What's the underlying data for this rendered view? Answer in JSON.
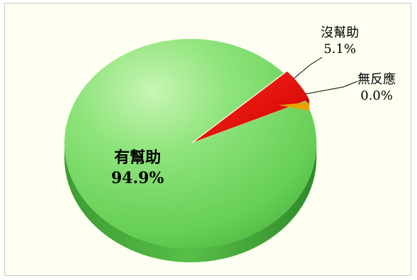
{
  "chart_data": {
    "type": "pie",
    "title": "",
    "slices": [
      {
        "label": "有幫助",
        "value": 94.9,
        "display": "94.9%",
        "color": "#7ddc6c"
      },
      {
        "label": "沒幫助",
        "value": 5.1,
        "display": "5.1%",
        "color": "#ee0000"
      },
      {
        "label": "無反應",
        "value": 0.0,
        "display": "0.0%",
        "color": "#e8a000"
      }
    ],
    "background": "#fffff1",
    "three_d": true,
    "legend": "none"
  }
}
